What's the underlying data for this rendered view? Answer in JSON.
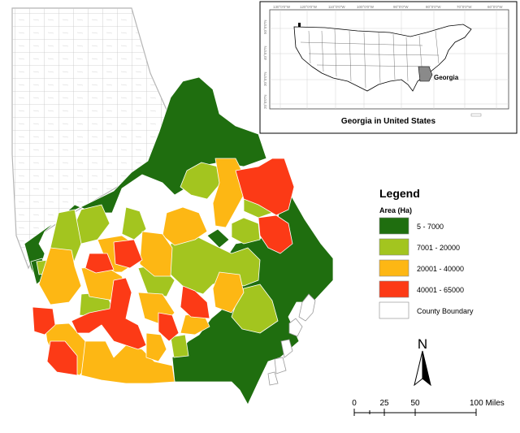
{
  "colors": {
    "class_1": "#1f6e0f",
    "class_2": "#a3c51f",
    "class_3": "#fdb714",
    "class_4": "#fc3a16",
    "county_boundary": "#ffffff",
    "county_line": "#c6c6c6",
    "georgia_inset": "#8a8a8a"
  },
  "inset": {
    "title": "Georgia in United States",
    "state_label": "Georgia",
    "longitude_labels": [
      "130°0'0\"W",
      "120°0'0\"W",
      "110°0'0\"W",
      "100°0'0\"W",
      "90°0'0\"W",
      "80°0'0\"W",
      "70°0'0\"W",
      "60°0'0\"W"
    ],
    "latitude_labels": [
      "50°0'0\"N",
      "40°0'0\"N",
      "30°0'0\"N",
      "20°0'0\"N"
    ]
  },
  "legend": {
    "title": "Legend",
    "subtitle": "Area (Ha)",
    "items": [
      {
        "label": "5 - 7000",
        "color": "#1f6e0f"
      },
      {
        "label": "7001 - 20000",
        "color": "#a3c51f"
      },
      {
        "label": "20001 - 40000",
        "color": "#fdb714"
      },
      {
        "label": "40001 - 65000",
        "color": "#fc3a16"
      },
      {
        "label": "County Boundary",
        "color": "#ffffff"
      }
    ]
  },
  "north_arrow": {
    "label": "N",
    "icon": "north-arrow-icon"
  },
  "scale_bar": {
    "labels": [
      "0",
      "25",
      "50",
      "100 Miles"
    ]
  }
}
